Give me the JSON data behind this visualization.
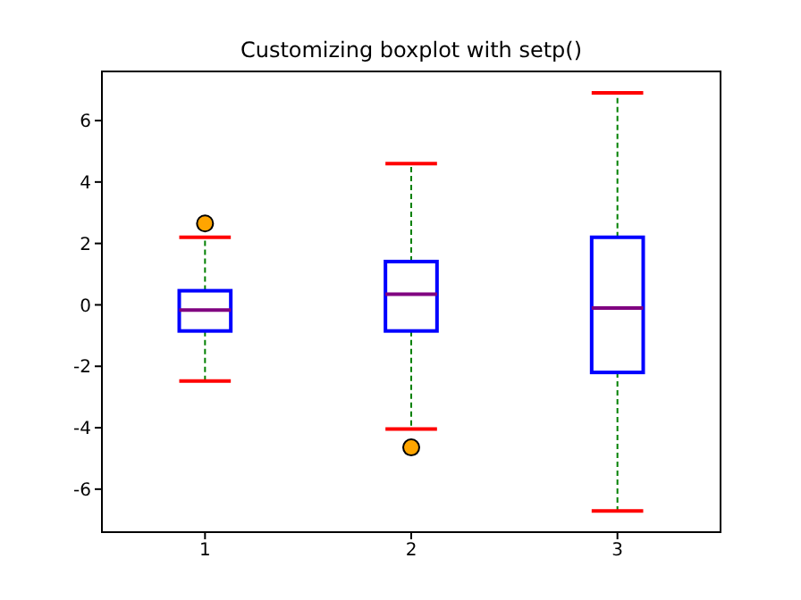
{
  "chart_data": {
    "type": "box",
    "title": "Customizing boxplot with setp()",
    "categories": [
      "1",
      "2",
      "3"
    ],
    "ylim": [
      -7.4,
      7.6
    ],
    "yticks": [
      -6,
      -4,
      -2,
      0,
      2,
      4,
      6
    ],
    "grid": false,
    "series": [
      {
        "color": "#0000ff",
        "boxes": [
          {
            "low": -2.48,
            "q1": -0.85,
            "median": -0.17,
            "q3": 0.46,
            "high": 2.2,
            "outliers": [
              2.65
            ]
          },
          {
            "low": -4.04,
            "q1": -0.85,
            "median": 0.35,
            "q3": 1.41,
            "high": 4.6,
            "outliers": [
              -4.64
            ]
          },
          {
            "low": -6.71,
            "q1": -2.2,
            "median": -0.1,
            "q3": 2.2,
            "high": 6.9
          }
        ]
      }
    ]
  }
}
